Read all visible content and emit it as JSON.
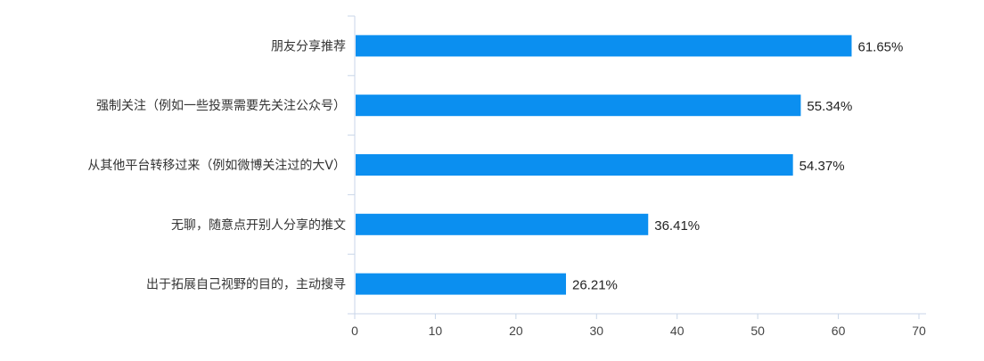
{
  "chart_data": {
    "type": "bar",
    "orientation": "horizontal",
    "categories": [
      "朋友分享推荐",
      "强制关注（例如一些投票需要先关注公众号）",
      "从其他平台转移过来（例如微博关注过的大V）",
      "无聊，随意点开别人分享的推文",
      "出于拓展自己视野的目的，主动搜寻"
    ],
    "values": [
      61.65,
      55.34,
      54.37,
      36.41,
      26.21
    ],
    "value_labels": [
      "61.65%",
      "55.34%",
      "54.37%",
      "36.41%",
      "26.21%"
    ],
    "xlim": [
      0,
      70
    ],
    "xticks": [
      0,
      10,
      20,
      30,
      40,
      50,
      60,
      70
    ],
    "xtick_labels": [
      "0",
      "10",
      "20",
      "30",
      "40",
      "50",
      "60",
      "70"
    ],
    "title": "",
    "xlabel": "",
    "ylabel": "",
    "grid": false,
    "colors": {
      "bar": "#0b8ff0",
      "axis": "#c8d6e8"
    }
  }
}
